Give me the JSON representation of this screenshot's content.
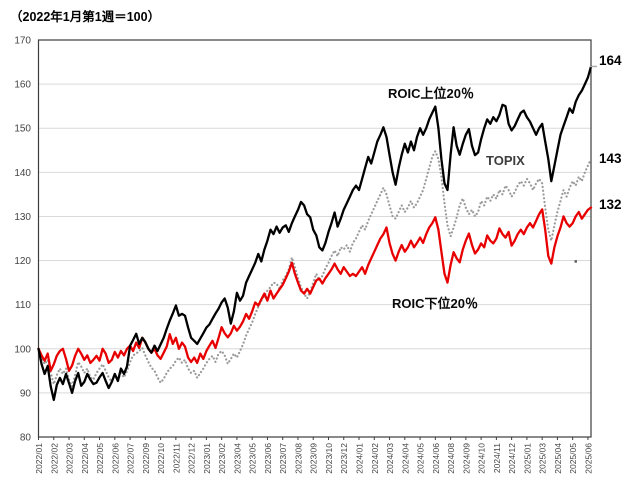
{
  "title": "（2022年1月第1週＝100）",
  "chart_data": {
    "type": "line",
    "title": "（2022年1月第1週＝100）",
    "xlabel": "",
    "ylabel": "",
    "ylim": [
      80,
      170
    ],
    "grid": "horizontal",
    "legend": "inline-labels",
    "y_ticks": [
      80,
      90,
      100,
      110,
      120,
      130,
      140,
      150,
      160,
      170
    ],
    "x_label_interval_weeks": 5,
    "weeks": 182,
    "x_labels": [
      "2022/01",
      "2022/02",
      "2022/03",
      "2022/04",
      "2022/05",
      "2022/06",
      "2022/07",
      "2022/09",
      "2022/10",
      "2022/11",
      "2022/12",
      "2023/01",
      "2023/02",
      "2023/04",
      "2023/05",
      "2023/06",
      "2023/07",
      "2023/08",
      "2023/09",
      "2023/10",
      "2023/12",
      "2024/01",
      "2024/02",
      "2024/03",
      "2024/04",
      "2024/05",
      "2024/06",
      "2024/08",
      "2024/09",
      "2024/10",
      "2024/11",
      "2024/12",
      "2025/01",
      "2025/03",
      "2025/04",
      "2025/05",
      "2025/06"
    ],
    "series": [
      {
        "name": "ROIC上位20％",
        "style": "solid",
        "color": "#000000",
        "width": 2.3,
        "end_value": 164,
        "values": [
          100,
          96.5,
          94.3,
          96.1,
          91.5,
          88.4,
          91.8,
          93.4,
          92.0,
          94.3,
          92.2,
          90.0,
          92.7,
          94.5,
          91.6,
          92.5,
          94.3,
          93.0,
          92.0,
          92.3,
          93.5,
          94.5,
          92.7,
          91.1,
          92.5,
          94.3,
          92.7,
          95.5,
          94.3,
          96.0,
          100.7,
          102.0,
          103.4,
          101.1,
          102.5,
          101.5,
          100.0,
          99.1,
          100.7,
          99.5,
          101.0,
          102.5,
          104.5,
          106.4,
          108.0,
          109.8,
          107.5,
          107.9,
          107.5,
          104.8,
          102.5,
          101.8,
          101.1,
          102.3,
          103.5,
          104.8,
          105.5,
          106.8,
          108.0,
          109.1,
          110.5,
          111.4,
          109.3,
          105.7,
          108.5,
          112.7,
          110.9,
          112.0,
          115.0,
          116.5,
          118.0,
          119.5,
          121.5,
          119.8,
          122.5,
          124.5,
          127.0,
          126.0,
          127.7,
          126.3,
          127.5,
          128.0,
          126.5,
          128.5,
          130.0,
          131.5,
          133.3,
          132.5,
          130.5,
          129.8,
          127.0,
          125.7,
          123.0,
          122.3,
          124.0,
          126.5,
          128.5,
          130.9,
          127.7,
          129.5,
          131.5,
          133.0,
          134.5,
          136.0,
          137.0,
          136.0,
          138.5,
          141.0,
          143.5,
          142.0,
          144.5,
          147.0,
          148.5,
          150.2,
          148.0,
          144.0,
          140.0,
          137.2,
          141.0,
          144.0,
          146.5,
          144.5,
          147.0,
          145.0,
          148.0,
          150.0,
          148.5,
          150.0,
          152.0,
          153.5,
          154.9,
          150.0,
          143.0,
          137.5,
          136.0,
          144.0,
          150.2,
          146.0,
          144.0,
          146.5,
          148.5,
          149.8,
          146.0,
          143.9,
          144.5,
          147.5,
          150.0,
          152.0,
          151.0,
          152.5,
          151.6,
          153.0,
          155.3,
          155.0,
          151.0,
          149.5,
          150.5,
          152.0,
          153.5,
          154.0,
          152.5,
          151.5,
          150.0,
          148.5,
          150.0,
          151.0,
          147.0,
          143.0,
          138.0,
          141.5,
          145.0,
          148.5,
          150.5,
          152.5,
          154.5,
          153.5,
          156.0,
          157.5,
          158.5,
          160.0,
          161.5,
          164.0
        ]
      },
      {
        "name": "TOPIX",
        "style": "dotted",
        "color": "#9b9b9b",
        "width": 2.1,
        "end_value": 143,
        "values": [
          100,
          98.0,
          96.5,
          97.5,
          94.5,
          92.0,
          94.0,
          95.5,
          94.3,
          95.5,
          93.0,
          91.5,
          94.0,
          97.0,
          96.0,
          94.5,
          95.5,
          93.5,
          93.0,
          94.5,
          95.5,
          96.5,
          95.0,
          93.5,
          92.5,
          94.0,
          93.0,
          94.5,
          93.5,
          95.0,
          97.0,
          98.5,
          98.9,
          99.5,
          100.2,
          98.5,
          97.0,
          95.7,
          95.0,
          93.5,
          92.3,
          93.2,
          94.5,
          95.5,
          96.1,
          97.3,
          98.0,
          96.8,
          97.5,
          95.5,
          94.5,
          95.0,
          93.4,
          94.5,
          95.5,
          96.8,
          97.7,
          98.4,
          97.0,
          98.9,
          99.5,
          98.5,
          96.6,
          97.7,
          98.9,
          98.0,
          99.5,
          101.0,
          103.0,
          104.5,
          106.0,
          107.9,
          109.5,
          110.9,
          112.0,
          113.2,
          114.0,
          115.0,
          114.8,
          113.5,
          115.5,
          116.5,
          118.0,
          120.7,
          118.5,
          116.0,
          114.0,
          112.5,
          111.4,
          113.0,
          115.0,
          117.0,
          115.5,
          116.5,
          118.2,
          119.5,
          121.0,
          122.3,
          121.0,
          123.0,
          122.5,
          123.5,
          122.0,
          124.0,
          125.0,
          126.5,
          128.0,
          127.0,
          129.0,
          130.5,
          132.0,
          133.5,
          135.0,
          136.5,
          135.0,
          132.5,
          130.0,
          129.5,
          131.0,
          132.5,
          131.0,
          132.0,
          133.5,
          132.0,
          133.0,
          134.5,
          136.0,
          138.5,
          141.0,
          143.5,
          144.8,
          143.0,
          139.0,
          133.0,
          128.0,
          125.5,
          127.5,
          129.8,
          132.5,
          134.1,
          132.0,
          130.5,
          131.5,
          130.0,
          131.0,
          133.5,
          132.5,
          134.5,
          133.5,
          135.0,
          134.0,
          136.0,
          135.0,
          137.0,
          136.0,
          134.5,
          135.5,
          137.0,
          138.0,
          137.0,
          138.5,
          137.5,
          136.0,
          137.5,
          138.5,
          137.5,
          132.0,
          127.0,
          124.5,
          128.0,
          131.0,
          133.5,
          136.0,
          134.5,
          136.5,
          138.0,
          137.0,
          139.0,
          138.0,
          140.0,
          141.5,
          143.0
        ]
      },
      {
        "name": "ROIC下位20％",
        "style": "solid",
        "color": "#e80000",
        "width": 2.3,
        "end_value": 132,
        "values": [
          100,
          98.5,
          97.3,
          98.9,
          95.0,
          96.5,
          98.4,
          99.5,
          100.0,
          97.7,
          95.0,
          96.2,
          98.4,
          100.0,
          98.9,
          97.5,
          98.5,
          96.8,
          97.5,
          98.4,
          97.3,
          100.0,
          98.9,
          96.8,
          97.5,
          99.3,
          98.0,
          99.5,
          98.5,
          100.0,
          100.7,
          99.5,
          101.4,
          100.2,
          102.5,
          101.5,
          100.0,
          99.1,
          100.0,
          98.5,
          97.7,
          99.1,
          100.5,
          103.3,
          101.1,
          102.5,
          100.0,
          101.4,
          100.5,
          98.0,
          97.0,
          98.0,
          96.8,
          98.9,
          97.7,
          99.5,
          100.7,
          101.8,
          100.2,
          102.5,
          104.9,
          103.5,
          102.6,
          103.5,
          105.2,
          104.1,
          105.0,
          106.2,
          107.9,
          106.8,
          108.5,
          110.5,
          109.8,
          111.2,
          112.5,
          110.9,
          113.2,
          111.4,
          112.5,
          113.5,
          114.5,
          116.0,
          117.5,
          119.5,
          117.0,
          115.0,
          113.2,
          112.5,
          113.6,
          112.5,
          114.0,
          115.5,
          115.9,
          114.8,
          116.0,
          117.0,
          118.0,
          119.3,
          118.0,
          117.0,
          118.5,
          117.5,
          116.5,
          117.0,
          116.5,
          117.5,
          118.5,
          117.0,
          119.0,
          120.5,
          122.0,
          123.5,
          125.0,
          126.0,
          127.5,
          124.0,
          121.5,
          120.0,
          122.0,
          123.5,
          122.0,
          123.0,
          124.5,
          123.0,
          124.0,
          125.2,
          124.0,
          126.0,
          127.5,
          128.5,
          129.8,
          127.0,
          122.0,
          117.0,
          115.0,
          119.0,
          121.9,
          120.5,
          119.6,
          122.5,
          124.5,
          126.1,
          123.5,
          121.6,
          122.5,
          123.9,
          123.0,
          125.7,
          124.5,
          123.9,
          125.0,
          127.3,
          126.0,
          125.2,
          126.5,
          123.4,
          124.5,
          126.0,
          127.0,
          126.0,
          127.5,
          128.5,
          127.5,
          129.0,
          130.5,
          131.6,
          127.0,
          121.0,
          119.3,
          123.0,
          125.5,
          127.5,
          130.0,
          128.5,
          127.7,
          128.5,
          130.0,
          131.0,
          129.5,
          130.5,
          131.5,
          132.0
        ]
      }
    ],
    "annotations": {
      "series_labels": [
        {
          "text": "ROIC上位20％",
          "target": "ROIC上位20%series"
        },
        {
          "text": "TOPIX",
          "target": "TOPIX series"
        },
        {
          "text": "ROIC下位20％",
          "target": "ROIC下位20% series"
        }
      ],
      "end_labels": [
        "164",
        "143",
        "132"
      ],
      "stray_dot": {
        "week": 176,
        "value": 119.8
      },
      "end_marker": {
        "week": 181,
        "value": 164
      }
    },
    "axis_colors": {
      "frame": "#3c3c3c",
      "gridline": "#d9d9d9",
      "tick_text": "#444444"
    }
  }
}
